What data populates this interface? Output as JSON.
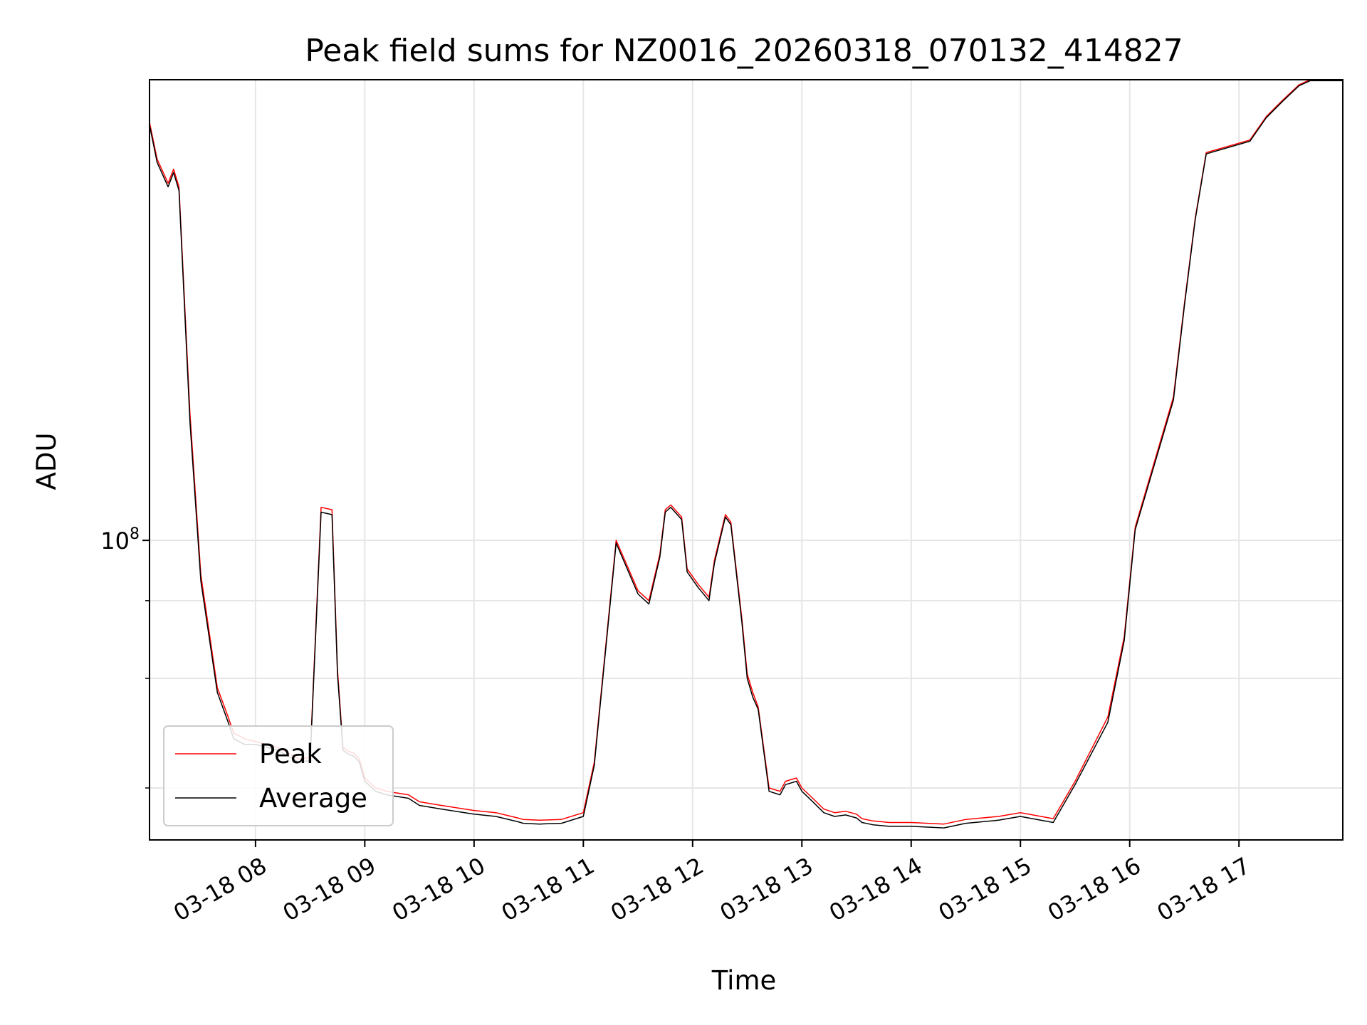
{
  "chart_data": {
    "type": "line",
    "title": "Peak field sums for NZ0016_20260318_070132_414827",
    "xlabel": "Time",
    "ylabel": "ADU",
    "yscale": "log",
    "ylim": [
      33000000,
      550000000
    ],
    "xlim": [
      7.03,
      17.95
    ],
    "grid": true,
    "legend_position": "lower-left",
    "x_ticks": [
      {
        "value": 8,
        "label": "03-18 08"
      },
      {
        "value": 9,
        "label": "03-18 09"
      },
      {
        "value": 10,
        "label": "03-18 10"
      },
      {
        "value": 11,
        "label": "03-18 11"
      },
      {
        "value": 12,
        "label": "03-18 12"
      },
      {
        "value": 13,
        "label": "03-18 13"
      },
      {
        "value": 14,
        "label": "03-18 14"
      },
      {
        "value": 15,
        "label": "03-18 15"
      },
      {
        "value": 16,
        "label": "03-18 16"
      },
      {
        "value": 17,
        "label": "03-18 17"
      }
    ],
    "y_major_ticks": [
      {
        "value": 100000000,
        "base": "10",
        "exp": "8"
      }
    ],
    "y_minor_ticks": [
      40000000,
      60000000,
      80000000
    ],
    "x": [
      7.03,
      7.1,
      7.2,
      7.25,
      7.3,
      7.4,
      7.5,
      7.65,
      7.75,
      7.8,
      7.9,
      8.0,
      8.2,
      8.4,
      8.5,
      8.6,
      8.7,
      8.75,
      8.8,
      8.85,
      8.9,
      8.95,
      9.0,
      9.1,
      9.2,
      9.4,
      9.5,
      9.7,
      10.0,
      10.2,
      10.4,
      10.45,
      10.6,
      10.8,
      11.0,
      11.1,
      11.3,
      11.5,
      11.6,
      11.7,
      11.75,
      11.8,
      11.9,
      11.95,
      12.05,
      12.15,
      12.2,
      12.3,
      12.35,
      12.45,
      12.5,
      12.55,
      12.6,
      12.7,
      12.8,
      12.85,
      12.95,
      13.0,
      13.1,
      13.2,
      13.3,
      13.4,
      13.5,
      13.55,
      13.65,
      13.8,
      14.0,
      14.3,
      14.5,
      14.8,
      15.0,
      15.3,
      15.5,
      15.8,
      15.95,
      16.05,
      16.4,
      16.5,
      16.6,
      16.7,
      17.1,
      17.25,
      17.4,
      17.55,
      17.65,
      17.75,
      17.85,
      17.95
    ],
    "series": [
      {
        "name": "Peak",
        "color": "#ff0000",
        "values": [
          470000000,
          410000000,
          375000000,
          395000000,
          370000000,
          160000000,
          88000000,
          58000000,
          52000000,
          49000000,
          48000000,
          47500000,
          46500000,
          44500000,
          44800000,
          113000000,
          112000000,
          62000000,
          46500000,
          45800000,
          45500000,
          44500000,
          41500000,
          40000000,
          39500000,
          39000000,
          38000000,
          37500000,
          36800000,
          36500000,
          35800000,
          35600000,
          35500000,
          35600000,
          36500000,
          44000000,
          100000000,
          83000000,
          80000000,
          95000000,
          112000000,
          114000000,
          109000000,
          90000000,
          85000000,
          81000000,
          93000000,
          110000000,
          107000000,
          75000000,
          61000000,
          57000000,
          54000000,
          40000000,
          39500000,
          41000000,
          41500000,
          40000000,
          38500000,
          37000000,
          36500000,
          36700000,
          36300000,
          35700000,
          35400000,
          35200000,
          35200000,
          35000000,
          35600000,
          36000000,
          36500000,
          35700000,
          41000000,
          52000000,
          70000000,
          105000000,
          170000000,
          240000000,
          330000000,
          420000000,
          440000000,
          480000000,
          510000000,
          540000000,
          550000000,
          550000000,
          550000000,
          550000000
        ]
      },
      {
        "name": "Average",
        "color": "#000000",
        "values": [
          465000000,
          405000000,
          370000000,
          390000000,
          365000000,
          155000000,
          86000000,
          57000000,
          51000000,
          48000000,
          47000000,
          47000000,
          46000000,
          44000000,
          44300000,
          111000000,
          110000000,
          61000000,
          46000000,
          45300000,
          45000000,
          44000000,
          41000000,
          39500000,
          39000000,
          38500000,
          37500000,
          37000000,
          36300000,
          36000000,
          35300000,
          35100000,
          35000000,
          35100000,
          36000000,
          43500000,
          99000000,
          82000000,
          79000000,
          94000000,
          111000000,
          113000000,
          108000000,
          89000000,
          84000000,
          80000000,
          92000000,
          109000000,
          106000000,
          74000000,
          60000000,
          56000000,
          53500000,
          39500000,
          39000000,
          40500000,
          41000000,
          39500000,
          38000000,
          36500000,
          36000000,
          36200000,
          35800000,
          35200000,
          34900000,
          34700000,
          34700000,
          34500000,
          35100000,
          35500000,
          36000000,
          35200000,
          40500000,
          51000000,
          69000000,
          104000000,
          168000000,
          238000000,
          328000000,
          418000000,
          438000000,
          478000000,
          508000000,
          538000000,
          548000000,
          548000000,
          548000000,
          548000000
        ]
      }
    ]
  }
}
